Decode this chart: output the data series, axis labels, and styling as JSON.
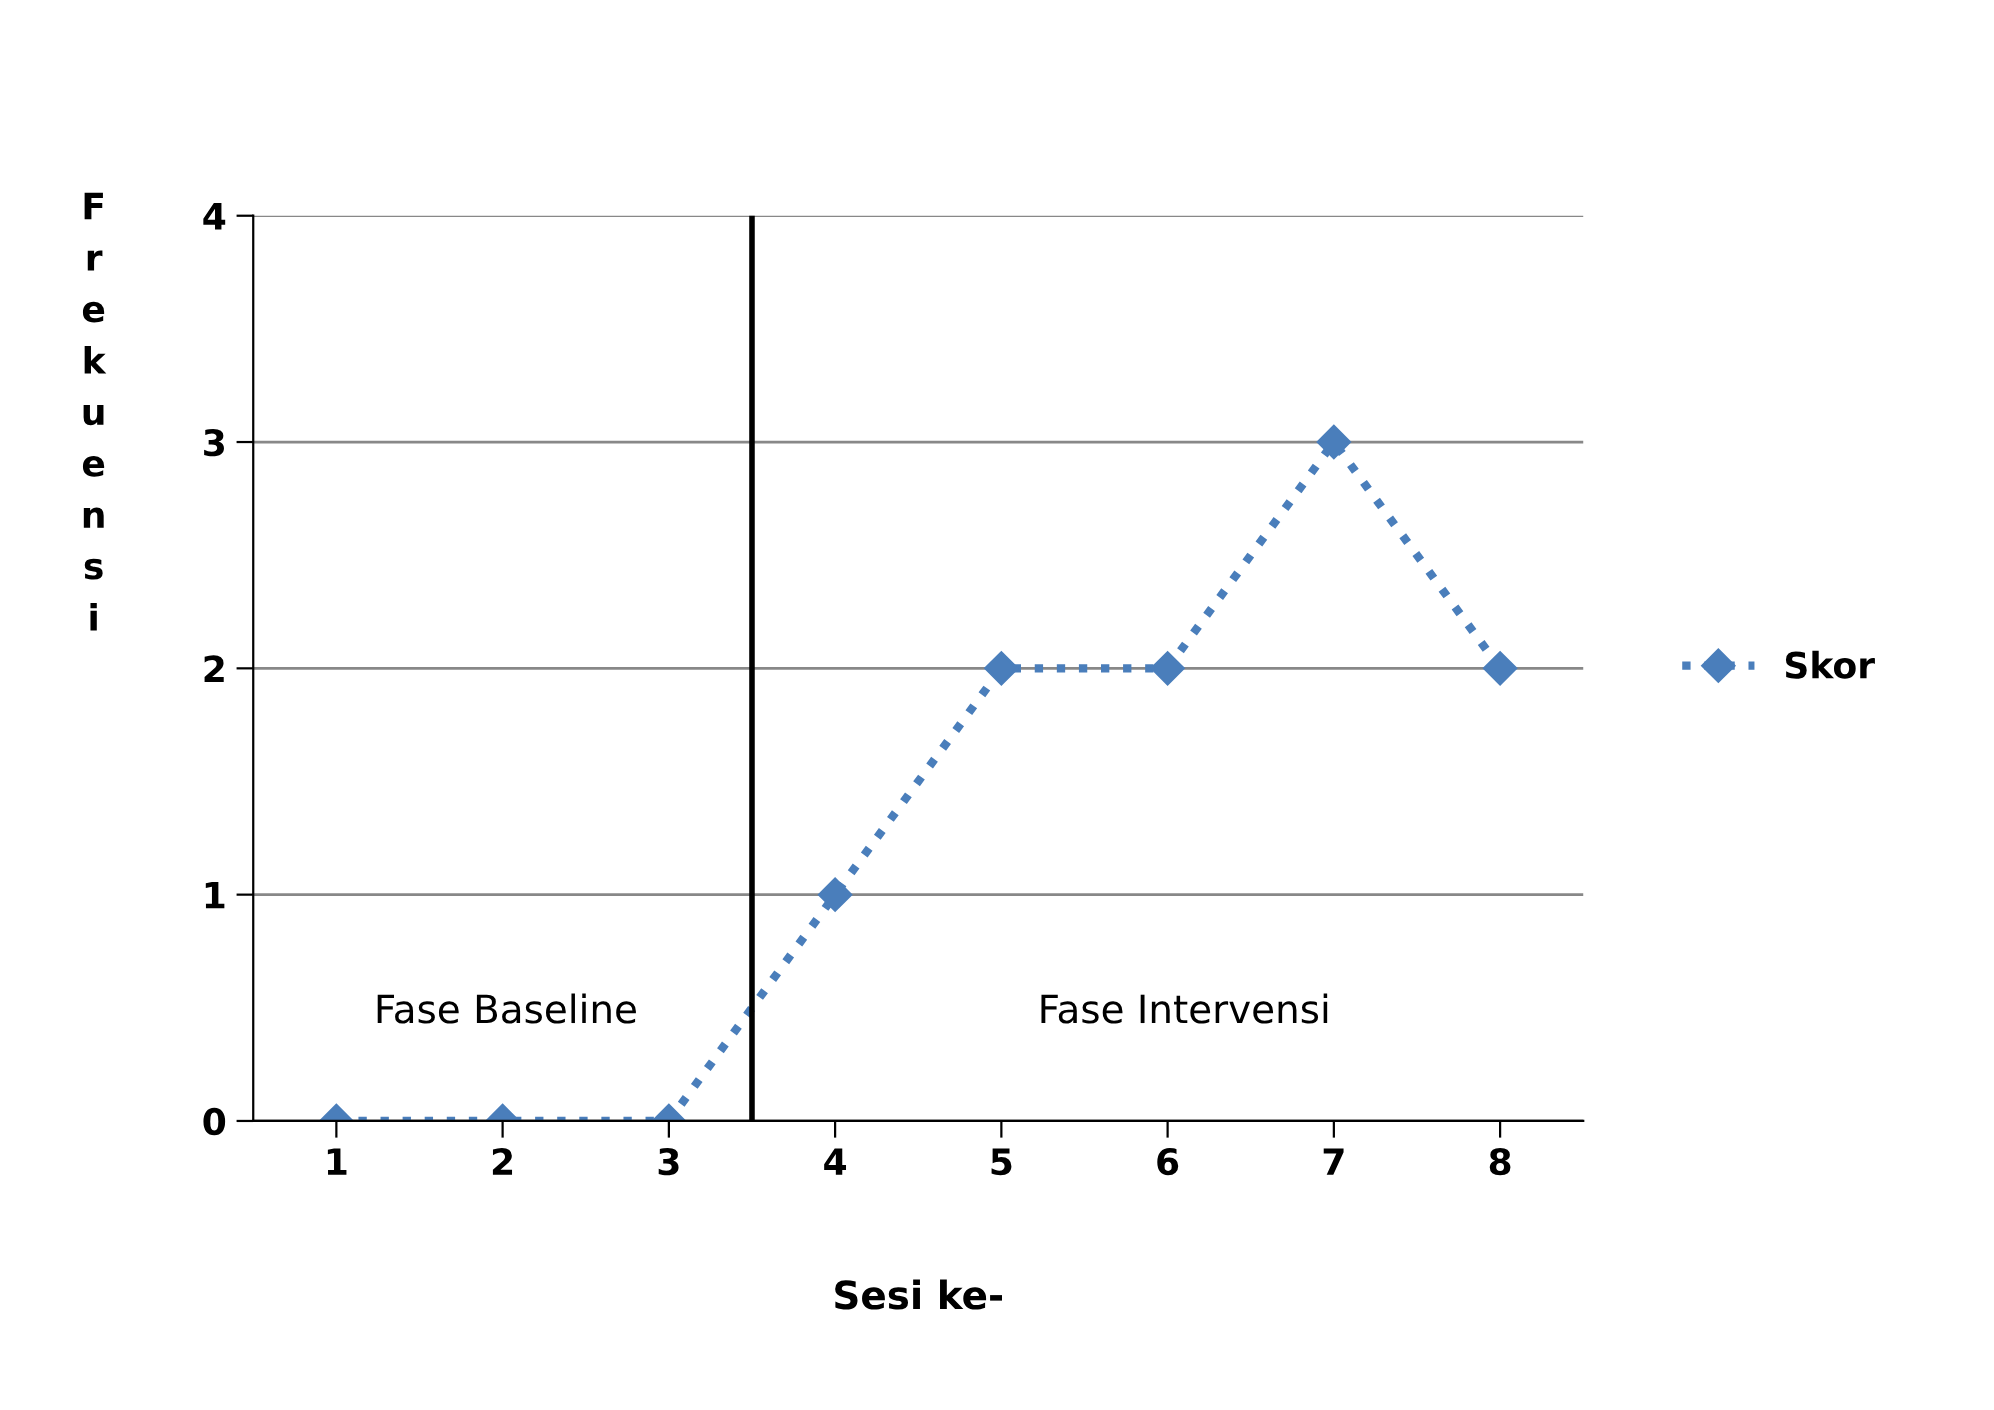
{
  "chart_data": {
    "type": "line",
    "xlabel": "Sesi ke-",
    "ylabel": "Frekuensi",
    "x": [
      1,
      2,
      3,
      4,
      5,
      6,
      7,
      8
    ],
    "xlim": [
      0.5,
      8.5
    ],
    "xticks": [
      1,
      2,
      3,
      4,
      5,
      6,
      7,
      8
    ],
    "ylim": [
      0,
      4
    ],
    "yticks": [
      0,
      1,
      2,
      3,
      4
    ],
    "series": [
      {
        "name": "Skor",
        "color": "#4a7ebb",
        "values": [
          0,
          0,
          0,
          1,
          2,
          2,
          3,
          2
        ]
      }
    ],
    "marker": "diamond",
    "line_style": "dotted",
    "grid": "y",
    "legend": "right",
    "ref_lines": [
      {
        "axis": "x",
        "value": 3.5,
        "color": "#000000",
        "line_style": "solid"
      }
    ],
    "annotations": [
      "Fase Baseline",
      "Fase Intervensi"
    ]
  }
}
